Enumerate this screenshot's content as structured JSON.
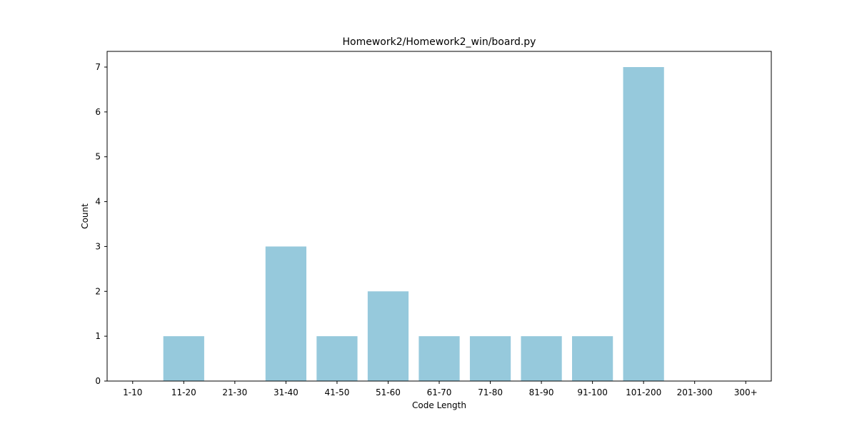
{
  "chart_data": {
    "type": "bar",
    "title": "Homework2/Homework2_win/board.py",
    "xlabel": "Code Length",
    "ylabel": "Count",
    "categories": [
      "1-10",
      "11-20",
      "21-30",
      "31-40",
      "41-50",
      "51-60",
      "61-70",
      "71-80",
      "81-90",
      "91-100",
      "101-200",
      "201-300",
      "300+"
    ],
    "values": [
      0,
      1,
      0,
      3,
      1,
      2,
      1,
      1,
      1,
      1,
      7,
      0,
      0
    ],
    "ylim": [
      0,
      7.35
    ],
    "yticks": [
      "0",
      "1",
      "2",
      "3",
      "4",
      "5",
      "6",
      "7"
    ],
    "grid": false,
    "bar_color": "#96c9dc"
  }
}
